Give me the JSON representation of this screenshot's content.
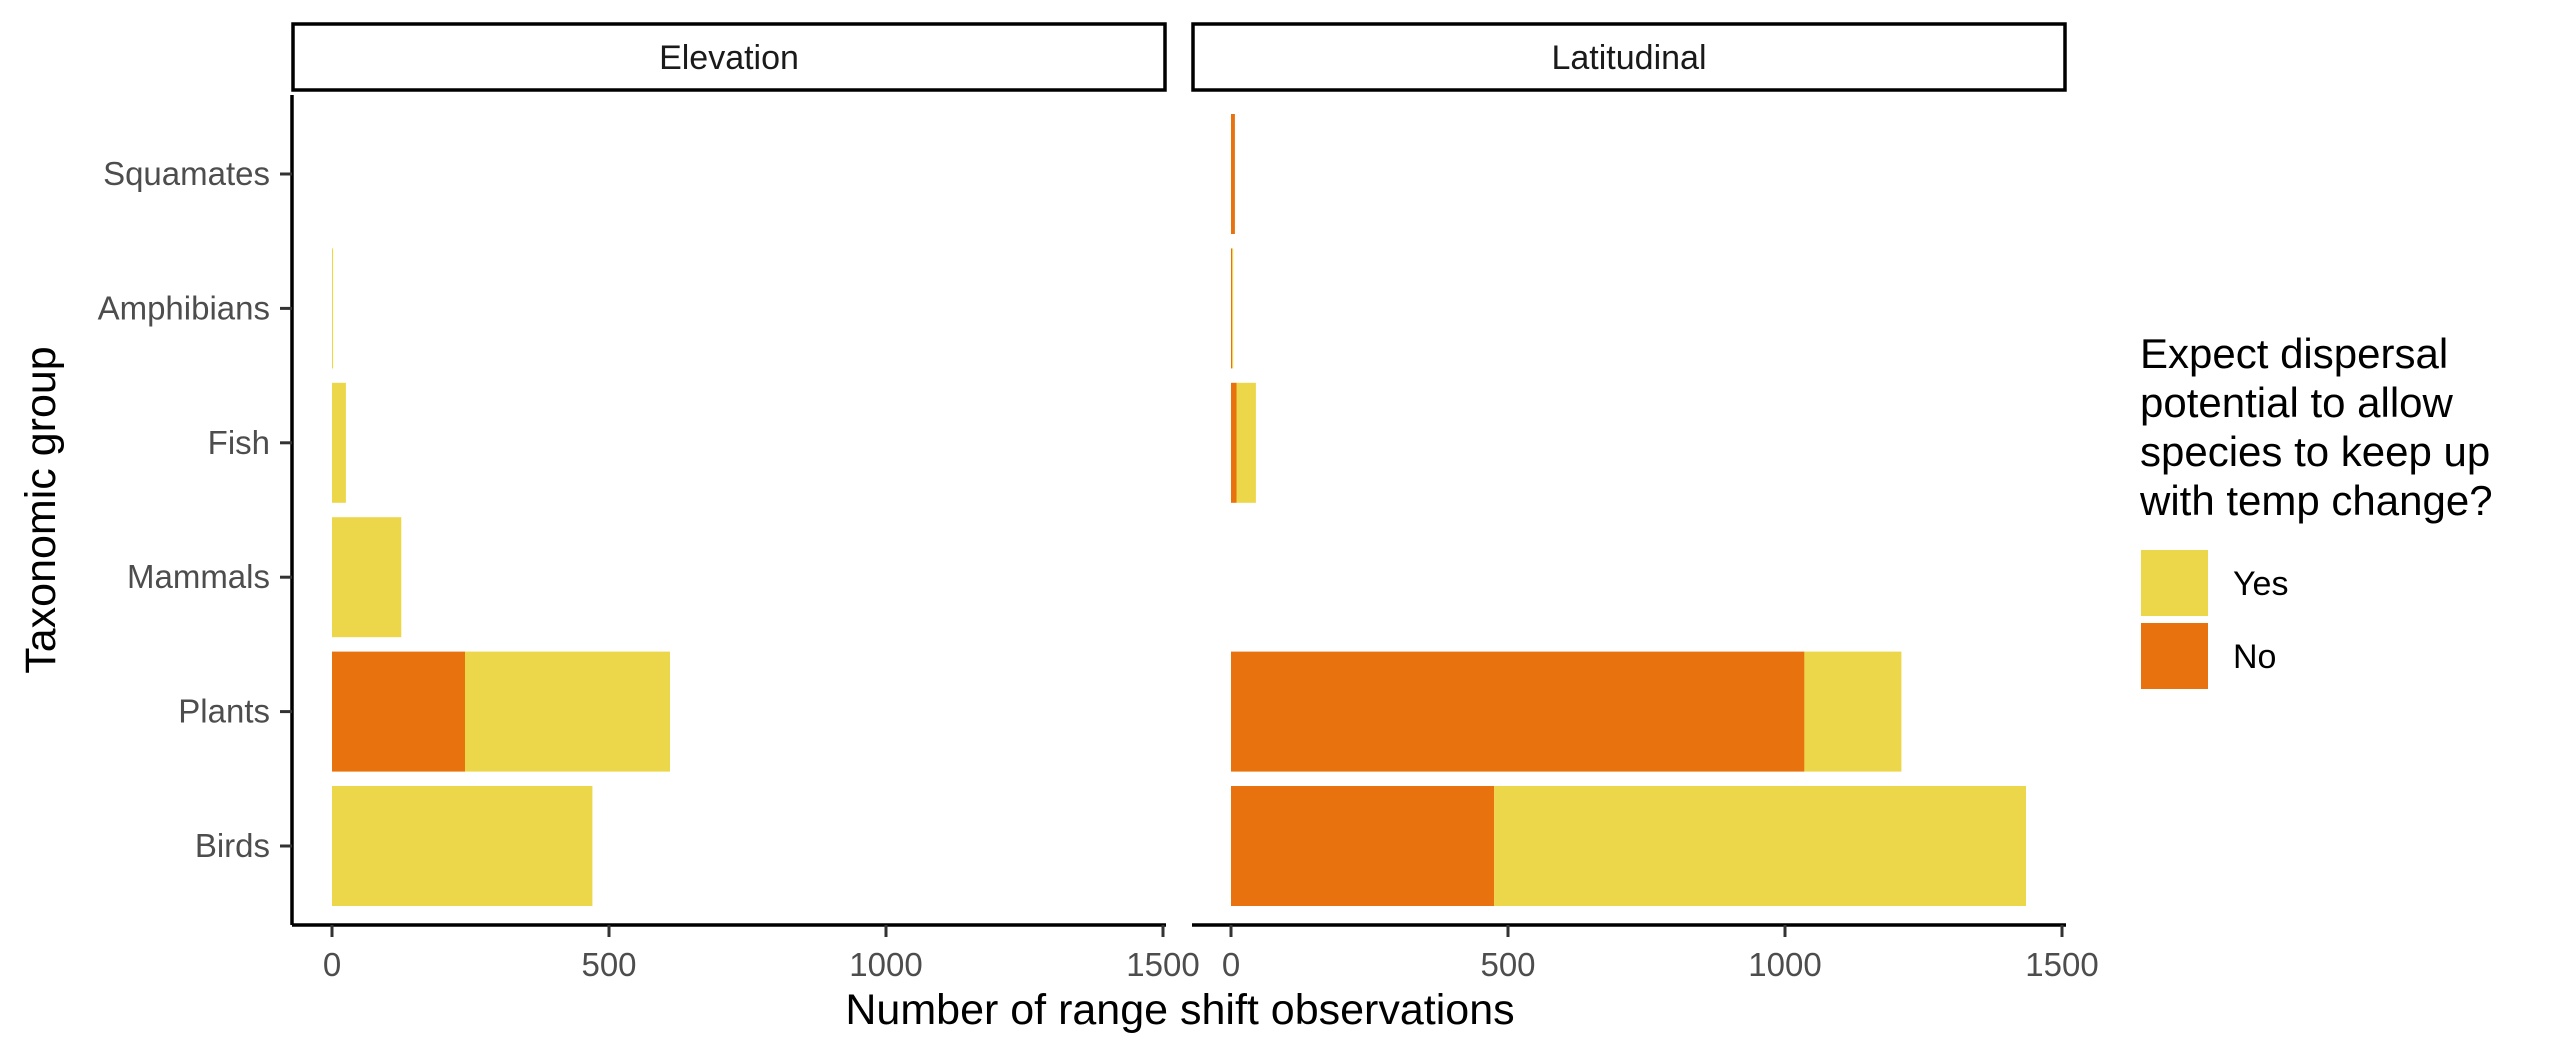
{
  "chart_data": {
    "type": "bar",
    "orientation": "horizontal",
    "stacked": true,
    "xlabel": "Number of range shift observations",
    "ylabel": "Taxonomic group",
    "xlim": [
      0,
      1500
    ],
    "xticks": [
      "0",
      "500",
      "1000",
      "1500"
    ],
    "categories": [
      "Birds",
      "Plants",
      "Mammals",
      "Fish",
      "Amphibians",
      "Squamates"
    ],
    "legend": {
      "title_lines": [
        "Expect dispersal",
        "potential to allow",
        "species to keep up",
        "with temp change?"
      ],
      "entries": [
        {
          "name": "Yes",
          "color": "#ECD74A"
        },
        {
          "name": "No",
          "color": "#E8720E"
        }
      ],
      "placement": "right"
    },
    "panels": [
      {
        "label": "Elevation",
        "series": [
          {
            "name": "No",
            "values": [
              0,
              240,
              0,
              0,
              0,
              0
            ]
          },
          {
            "name": "Yes",
            "values": [
              470,
              370,
              125,
              25,
              2,
              0
            ]
          }
        ]
      },
      {
        "label": "Latitudinal",
        "series": [
          {
            "name": "No",
            "values": [
              475,
              1035,
              0,
              10,
              2,
              7
            ]
          },
          {
            "name": "Yes",
            "values": [
              960,
              175,
              0,
              35,
              2,
              0
            ]
          }
        ]
      }
    ]
  }
}
